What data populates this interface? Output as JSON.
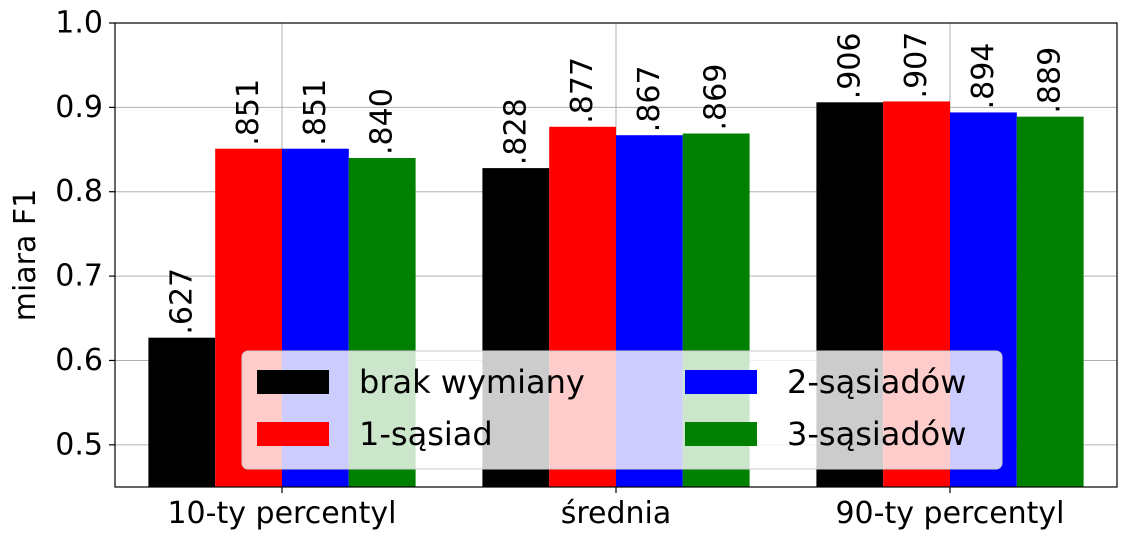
{
  "chart_data": {
    "type": "bar",
    "categories": [
      "10-ty percentyl",
      "średnia",
      "90-ty percentyl"
    ],
    "series": [
      {
        "name": "brak wymiany",
        "color": "#000000",
        "values": [
          0.627,
          0.828,
          0.906
        ],
        "labels": [
          ".627",
          ".828",
          ".906"
        ]
      },
      {
        "name": "1-sąsiad",
        "color": "#ff0000",
        "values": [
          0.851,
          0.877,
          0.907
        ],
        "labels": [
          ".851",
          ".877",
          ".907"
        ]
      },
      {
        "name": "2-sąsiadów",
        "color": "#0000ff",
        "values": [
          0.851,
          0.867,
          0.894
        ],
        "labels": [
          ".851",
          ".867",
          ".894"
        ]
      },
      {
        "name": "3-sąsiadów",
        "color": "#008000",
        "values": [
          0.84,
          0.869,
          0.889
        ],
        "labels": [
          ".840",
          ".869",
          ".889"
        ]
      }
    ],
    "ylabel": "miara F1",
    "xlabel": "",
    "ylim": [
      0.45,
      1.0
    ],
    "yticks": [
      "0.5",
      "0.6",
      "0.7",
      "0.8",
      "0.9",
      "1.0"
    ],
    "grid": true,
    "legend": {
      "placement": "lower-center",
      "columns": 2
    }
  }
}
